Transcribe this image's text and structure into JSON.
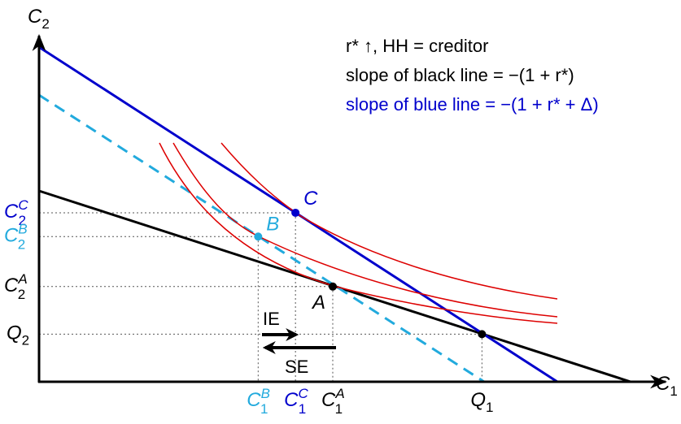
{
  "chart_data": {
    "type": "line",
    "title": "",
    "xlabel": "C1",
    "ylabel": "C2",
    "axes": {
      "x": {
        "label_main": "C",
        "label_sub": "1"
      },
      "y": {
        "label_main": "C",
        "label_sub": "2"
      }
    },
    "annotations": {
      "line1": "r* ↑, HH = creditor",
      "line2": "slope of black line = −(1 + r*)",
      "line3": "slope of blue line = −(1 + r* + Δ)"
    },
    "colors": {
      "black": "#000000",
      "blue": "#0000cc",
      "cyan": "#22aadd",
      "red": "#dd0000",
      "guide": "#555555"
    },
    "budget_lines": [
      {
        "name": "black budget line",
        "color_key": "black",
        "style": "solid",
        "y_intercept": 4.1,
        "x_intercept": 12.7
      },
      {
        "name": "blue budget line",
        "color_key": "blue",
        "style": "solid",
        "y_intercept": 7.2,
        "x_intercept": 11.1
      },
      {
        "name": "cyan dashed compensated line",
        "color_key": "cyan",
        "style": "dashed",
        "y_intercept": 6.2,
        "x_intercept": 9.5
      }
    ],
    "points": [
      {
        "id": "Q",
        "label": "",
        "x": 9.5,
        "y": 1.0,
        "color_key": "black"
      },
      {
        "id": "A",
        "label": "A",
        "x": 6.3,
        "y": 2.0,
        "color_key": "black"
      },
      {
        "id": "B",
        "label": "B",
        "x": 4.7,
        "y": 3.05,
        "color_key": "cyan"
      },
      {
        "id": "C",
        "label": "C",
        "x": 5.5,
        "y": 3.55,
        "color_key": "blue"
      }
    ],
    "x_ticks": [
      {
        "main": "C",
        "sub": "1",
        "sup": "B",
        "color_key": "cyan",
        "x": 4.7
      },
      {
        "main": "C",
        "sub": "1",
        "sup": "C",
        "color_key": "blue",
        "x": 5.5
      },
      {
        "main": "C",
        "sub": "1",
        "sup": "A",
        "color_key": "black",
        "x": 6.3
      },
      {
        "main": "Q",
        "sub": "1",
        "sup": "",
        "color_key": "black",
        "x": 9.5
      }
    ],
    "y_ticks": [
      {
        "main": "C",
        "sub": "2",
        "sup": "C",
        "color_key": "blue",
        "y": 3.55
      },
      {
        "main": "C",
        "sub": "2",
        "sup": "B",
        "color_key": "cyan",
        "y": 3.05
      },
      {
        "main": "C",
        "sub": "2",
        "sup": "A",
        "color_key": "black",
        "y": 2.0
      },
      {
        "main": "Q",
        "sub": "2",
        "sup": "",
        "color_key": "black",
        "y": 1.0
      }
    ],
    "effects": [
      {
        "label": "IE",
        "from": "B",
        "to": "C",
        "direction": "right"
      },
      {
        "label": "SE",
        "from": "A",
        "to": "B",
        "direction": "left"
      }
    ],
    "indifference_curves": [
      {
        "name": "indifference curve through A",
        "tangent_to": "black budget line"
      },
      {
        "name": "indifference curve through B",
        "tangent_to": "cyan dashed line"
      },
      {
        "name": "indifference curve through C",
        "tangent_to": "blue budget line"
      }
    ]
  }
}
